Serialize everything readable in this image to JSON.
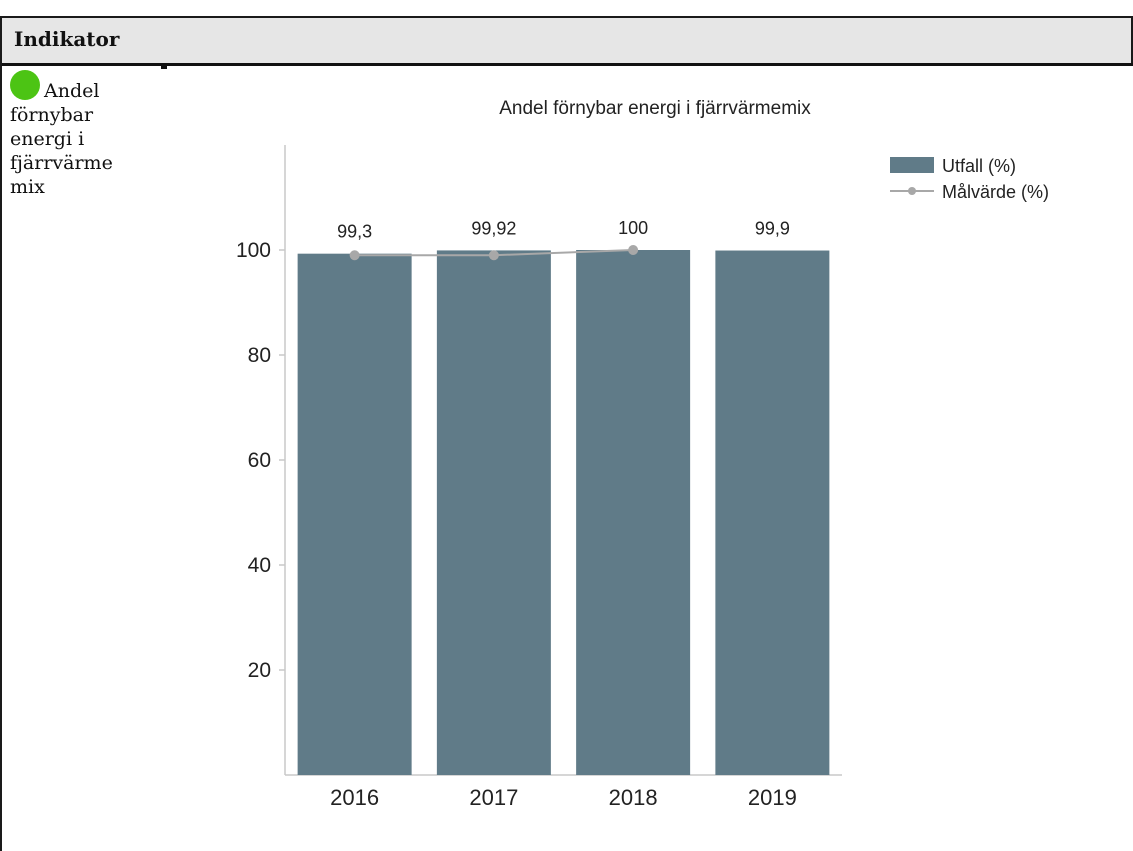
{
  "table": {
    "header": "Indikator",
    "indicator_label": "Andel förnybar energi i fjärrvärme mix",
    "status_color": "#4cc414"
  },
  "chart_data": {
    "type": "bar",
    "title": "Andel förnybar energi i fjärrvärmemix",
    "categories": [
      "2016",
      "2017",
      "2018",
      "2019"
    ],
    "series": [
      {
        "name": "Utfall (%)",
        "type": "bar",
        "values": [
          99.3,
          99.92,
          100,
          99.9
        ],
        "labels": [
          "99,3",
          "99,92",
          "100",
          "99,9"
        ],
        "color": "#607b88"
      },
      {
        "name": "Målvärde (%)",
        "type": "line",
        "values": [
          99,
          99,
          100,
          null
        ],
        "color": "#a8a8a8"
      }
    ],
    "y_ticks": [
      20,
      40,
      60,
      80,
      100
    ],
    "ylim": [
      0,
      120
    ],
    "grid": false,
    "legend_position": "top-right"
  }
}
